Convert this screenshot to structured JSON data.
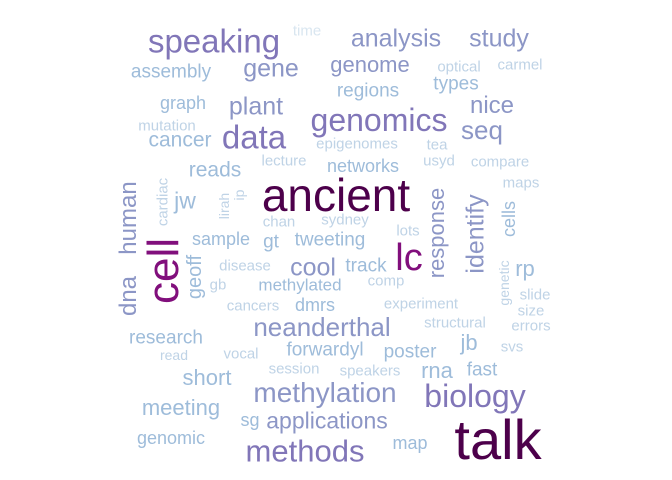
{
  "palette": {
    "c1": "#4d004b",
    "c2": "#810f7c",
    "c3": "#8176b8",
    "c4": "#8c96c6",
    "c5": "#9ebcda",
    "c6": "#bfd3e6",
    "c7": "#d9e6f0"
  },
  "words": [
    {
      "text": "talk",
      "color": "c1"
    },
    {
      "text": "ancient",
      "color": "c1"
    },
    {
      "text": "cell",
      "color": "c2"
    },
    {
      "text": "lc",
      "color": "c2"
    },
    {
      "text": "speaking",
      "color": "c3"
    },
    {
      "text": "genomics",
      "color": "c3"
    },
    {
      "text": "data",
      "color": "c3"
    },
    {
      "text": "biology",
      "color": "c3"
    },
    {
      "text": "methods",
      "color": "c3"
    },
    {
      "text": "methylation",
      "color": "c4"
    },
    {
      "text": "neanderthal",
      "color": "c4"
    },
    {
      "text": "analysis",
      "color": "c4"
    },
    {
      "text": "study",
      "color": "c4"
    },
    {
      "text": "gene",
      "color": "c4"
    },
    {
      "text": "genome",
      "color": "c4"
    },
    {
      "text": "plant",
      "color": "c4"
    },
    {
      "text": "seq",
      "color": "c4"
    },
    {
      "text": "nice",
      "color": "c4"
    },
    {
      "text": "identify",
      "color": "c4"
    },
    {
      "text": "response",
      "color": "c4"
    },
    {
      "text": "dna",
      "color": "c4"
    },
    {
      "text": "human",
      "color": "c4"
    },
    {
      "text": "cool",
      "color": "c4"
    },
    {
      "text": "applications",
      "color": "c4"
    },
    {
      "text": "cancer",
      "color": "c5"
    },
    {
      "text": "reads",
      "color": "c5"
    },
    {
      "text": "jw",
      "color": "c5"
    },
    {
      "text": "geoff",
      "color": "c5"
    },
    {
      "text": "short",
      "color": "c5"
    },
    {
      "text": "meeting",
      "color": "c5"
    },
    {
      "text": "rna",
      "color": "c5"
    },
    {
      "text": "jb",
      "color": "c5"
    },
    {
      "text": "rp",
      "color": "c5"
    },
    {
      "text": "forwardyl",
      "color": "c5"
    },
    {
      "text": "poster",
      "color": "c5"
    },
    {
      "text": "fast",
      "color": "c5"
    },
    {
      "text": "research",
      "color": "c5"
    },
    {
      "text": "regions",
      "color": "c5"
    },
    {
      "text": "types",
      "color": "c5"
    },
    {
      "text": "assembly",
      "color": "c5"
    },
    {
      "text": "graph",
      "color": "c5"
    },
    {
      "text": "sample",
      "color": "c5"
    },
    {
      "text": "gt",
      "color": "c5"
    },
    {
      "text": "tweeting",
      "color": "c5"
    },
    {
      "text": "track",
      "color": "c5"
    },
    {
      "text": "methylated",
      "color": "c5"
    },
    {
      "text": "dmrs",
      "color": "c5"
    },
    {
      "text": "networks",
      "color": "c5"
    },
    {
      "text": "cells",
      "color": "c5"
    },
    {
      "text": "genomic",
      "color": "c5"
    },
    {
      "text": "sg",
      "color": "c5"
    },
    {
      "text": "map",
      "color": "c5"
    },
    {
      "text": "cardiac",
      "color": "c6"
    },
    {
      "text": "lecture",
      "color": "c6"
    },
    {
      "text": "epigenomes",
      "color": "c6"
    },
    {
      "text": "usyd",
      "color": "c6"
    },
    {
      "text": "compare",
      "color": "c6"
    },
    {
      "text": "maps",
      "color": "c6"
    },
    {
      "text": "lirah",
      "color": "c6"
    },
    {
      "text": "ip",
      "color": "c6"
    },
    {
      "text": "chan",
      "color": "c6"
    },
    {
      "text": "sydney",
      "color": "c6"
    },
    {
      "text": "lots",
      "color": "c6"
    },
    {
      "text": "disease",
      "color": "c6"
    },
    {
      "text": "gb",
      "color": "c6"
    },
    {
      "text": "comp",
      "color": "c6"
    },
    {
      "text": "genetic",
      "color": "c6"
    },
    {
      "text": "slide",
      "color": "c6"
    },
    {
      "text": "size",
      "color": "c6"
    },
    {
      "text": "errors",
      "color": "c6"
    },
    {
      "text": "cancers",
      "color": "c6"
    },
    {
      "text": "experiment",
      "color": "c6"
    },
    {
      "text": "structural",
      "color": "c6"
    },
    {
      "text": "svs",
      "color": "c6"
    },
    {
      "text": "read",
      "color": "c6"
    },
    {
      "text": "vocal",
      "color": "c6"
    },
    {
      "text": "session",
      "color": "c6"
    },
    {
      "text": "speakers",
      "color": "c6"
    },
    {
      "text": "mutation",
      "color": "c6"
    },
    {
      "text": "tea",
      "color": "c6"
    },
    {
      "text": "optical",
      "color": "c6"
    },
    {
      "text": "carmel",
      "color": "c6"
    },
    {
      "text": "time",
      "color": "c7"
    }
  ]
}
